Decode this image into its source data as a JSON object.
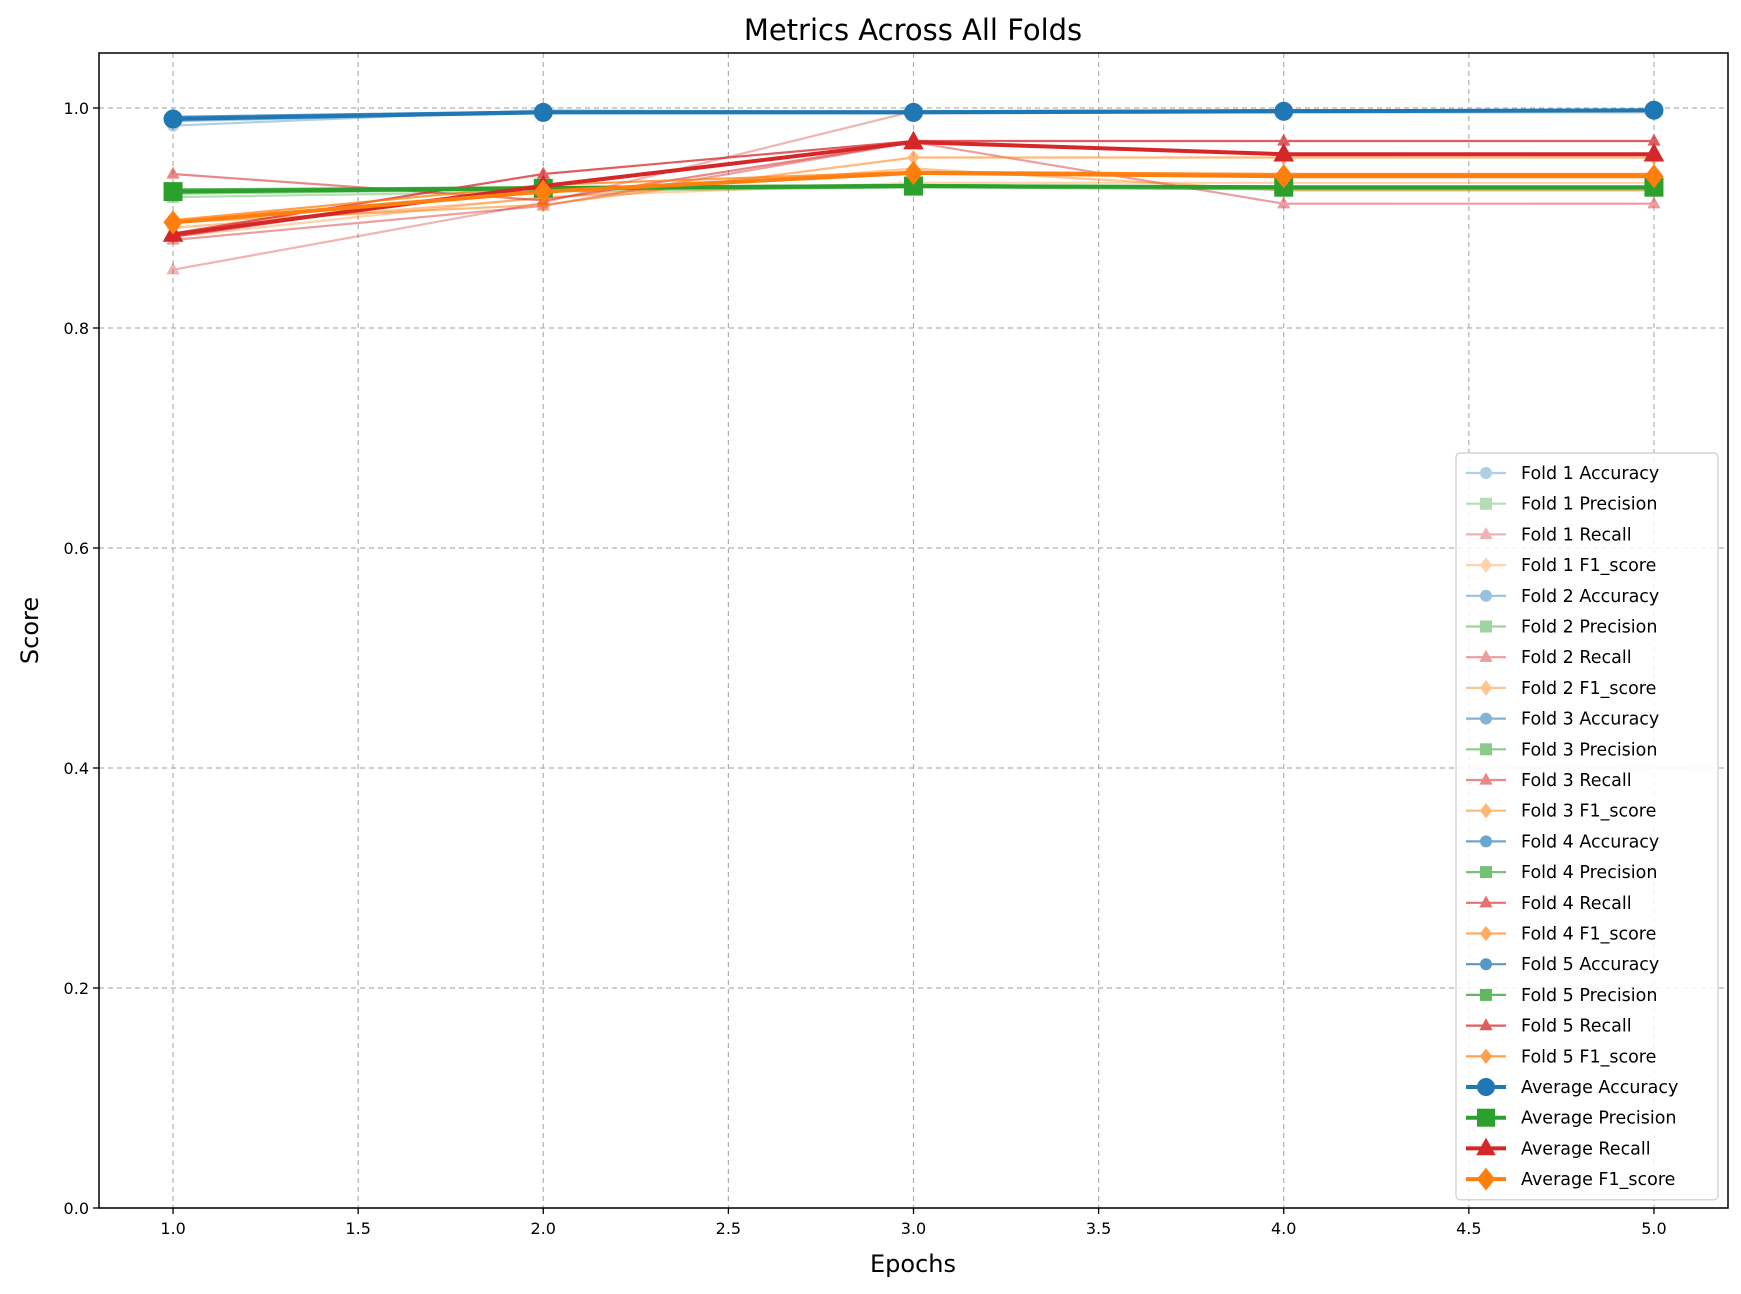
{
  "chart_data": {
    "type": "line",
    "title": "Metrics Across All Folds",
    "xlabel": "Epochs",
    "ylabel": "Score",
    "xlim": [
      0.8,
      5.2
    ],
    "ylim": [
      0.0,
      1.05
    ],
    "xticks": [
      "1.0",
      "1.5",
      "2.0",
      "2.5",
      "3.0",
      "3.5",
      "4.0",
      "4.5",
      "5.0"
    ],
    "yticks": [
      "0.0",
      "0.2",
      "0.4",
      "0.6",
      "0.8",
      "1.0"
    ],
    "grid": true,
    "legend_position": "lower-right",
    "x": [
      1,
      2,
      3,
      4,
      5
    ],
    "colors": {
      "Accuracy": "#1f77b4",
      "Precision": "#2ca02c",
      "Recall": "#d62728",
      "F1_score": "#ff7f0e"
    },
    "markers": {
      "Accuracy": "circle",
      "Precision": "square",
      "Recall": "triangle",
      "F1_score": "diamond"
    },
    "series": [
      {
        "name": "Fold 1 Accuracy",
        "metric": "Accuracy",
        "fold": 1,
        "values": [
          0.984,
          0.998,
          0.996,
          0.996,
          0.996
        ]
      },
      {
        "name": "Fold 1 Precision",
        "metric": "Precision",
        "fold": 1,
        "values": [
          0.919,
          0.924,
          0.928,
          0.926,
          0.926
        ]
      },
      {
        "name": "Fold 1 Recall",
        "metric": "Recall",
        "fold": 1,
        "values": [
          0.853,
          0.914,
          0.997,
          0.997,
          0.997
        ]
      },
      {
        "name": "Fold 1 F1_score",
        "metric": "F1_score",
        "fold": 1,
        "values": [
          0.883,
          0.919,
          0.932,
          0.932,
          0.932
        ]
      },
      {
        "name": "Fold 2 Accuracy",
        "metric": "Accuracy",
        "fold": 2,
        "values": [
          0.988,
          0.996,
          0.996,
          0.998,
          0.998
        ]
      },
      {
        "name": "Fold 2 Precision",
        "metric": "Precision",
        "fold": 2,
        "values": [
          0.922,
          0.926,
          0.928,
          0.926,
          0.926
        ]
      },
      {
        "name": "Fold 2 Recall",
        "metric": "Recall",
        "fold": 2,
        "values": [
          0.88,
          0.911,
          0.969,
          0.913,
          0.913
        ]
      },
      {
        "name": "Fold 2 F1_score",
        "metric": "F1_score",
        "fold": 2,
        "values": [
          0.891,
          0.918,
          0.945,
          0.925,
          0.925
        ]
      },
      {
        "name": "Fold 3 Accuracy",
        "metric": "Accuracy",
        "fold": 3,
        "values": [
          0.99,
          0.996,
          0.996,
          0.998,
          0.998
        ]
      },
      {
        "name": "Fold 3 Precision",
        "metric": "Precision",
        "fold": 3,
        "values": [
          0.924,
          0.928,
          0.93,
          0.928,
          0.928
        ]
      },
      {
        "name": "Fold 3 Recall",
        "metric": "Recall",
        "fold": 3,
        "values": [
          0.94,
          0.916,
          0.969,
          0.958,
          0.958
        ]
      },
      {
        "name": "Fold 3 F1_score",
        "metric": "F1_score",
        "fold": 3,
        "values": [
          0.896,
          0.912,
          0.955,
          0.955,
          0.955
        ]
      },
      {
        "name": "Fold 4 Accuracy",
        "metric": "Accuracy",
        "fold": 4,
        "values": [
          0.991,
          0.997,
          0.997,
          0.998,
          0.998
        ]
      },
      {
        "name": "Fold 4 Precision",
        "metric": "Precision",
        "fold": 4,
        "values": [
          0.925,
          0.928,
          0.93,
          0.928,
          0.928
        ]
      },
      {
        "name": "Fold 4 Recall",
        "metric": "Recall",
        "fold": 4,
        "values": [
          0.883,
          0.93,
          0.969,
          0.958,
          0.958
        ]
      },
      {
        "name": "Fold 4 F1_score",
        "metric": "F1_score",
        "fold": 4,
        "values": [
          0.897,
          0.925,
          0.942,
          0.94,
          0.94
        ]
      },
      {
        "name": "Fold 5 Accuracy",
        "metric": "Accuracy",
        "fold": 5,
        "values": [
          0.992,
          0.997,
          0.997,
          0.998,
          0.998
        ]
      },
      {
        "name": "Fold 5 Precision",
        "metric": "Precision",
        "fold": 5,
        "values": [
          0.926,
          0.928,
          0.93,
          0.928,
          0.928
        ]
      },
      {
        "name": "Fold 5 Recall",
        "metric": "Recall",
        "fold": 5,
        "values": [
          0.886,
          0.94,
          0.97,
          0.97,
          0.97
        ]
      },
      {
        "name": "Fold 5 F1_score",
        "metric": "F1_score",
        "fold": 5,
        "values": [
          0.898,
          0.93,
          0.942,
          0.94,
          0.94
        ]
      },
      {
        "name": "Average Accuracy",
        "metric": "Accuracy",
        "fold": 0,
        "values": [
          0.99,
          0.996,
          0.996,
          0.997,
          0.998
        ]
      },
      {
        "name": "Average Precision",
        "metric": "Precision",
        "fold": 0,
        "values": [
          0.924,
          0.927,
          0.929,
          0.928,
          0.928
        ]
      },
      {
        "name": "Average Recall",
        "metric": "Recall",
        "fold": 0,
        "values": [
          0.885,
          0.929,
          0.969,
          0.958,
          0.958
        ]
      },
      {
        "name": "Average F1_score",
        "metric": "F1_score",
        "fold": 0,
        "values": [
          0.896,
          0.924,
          0.941,
          0.938,
          0.938
        ]
      }
    ]
  }
}
